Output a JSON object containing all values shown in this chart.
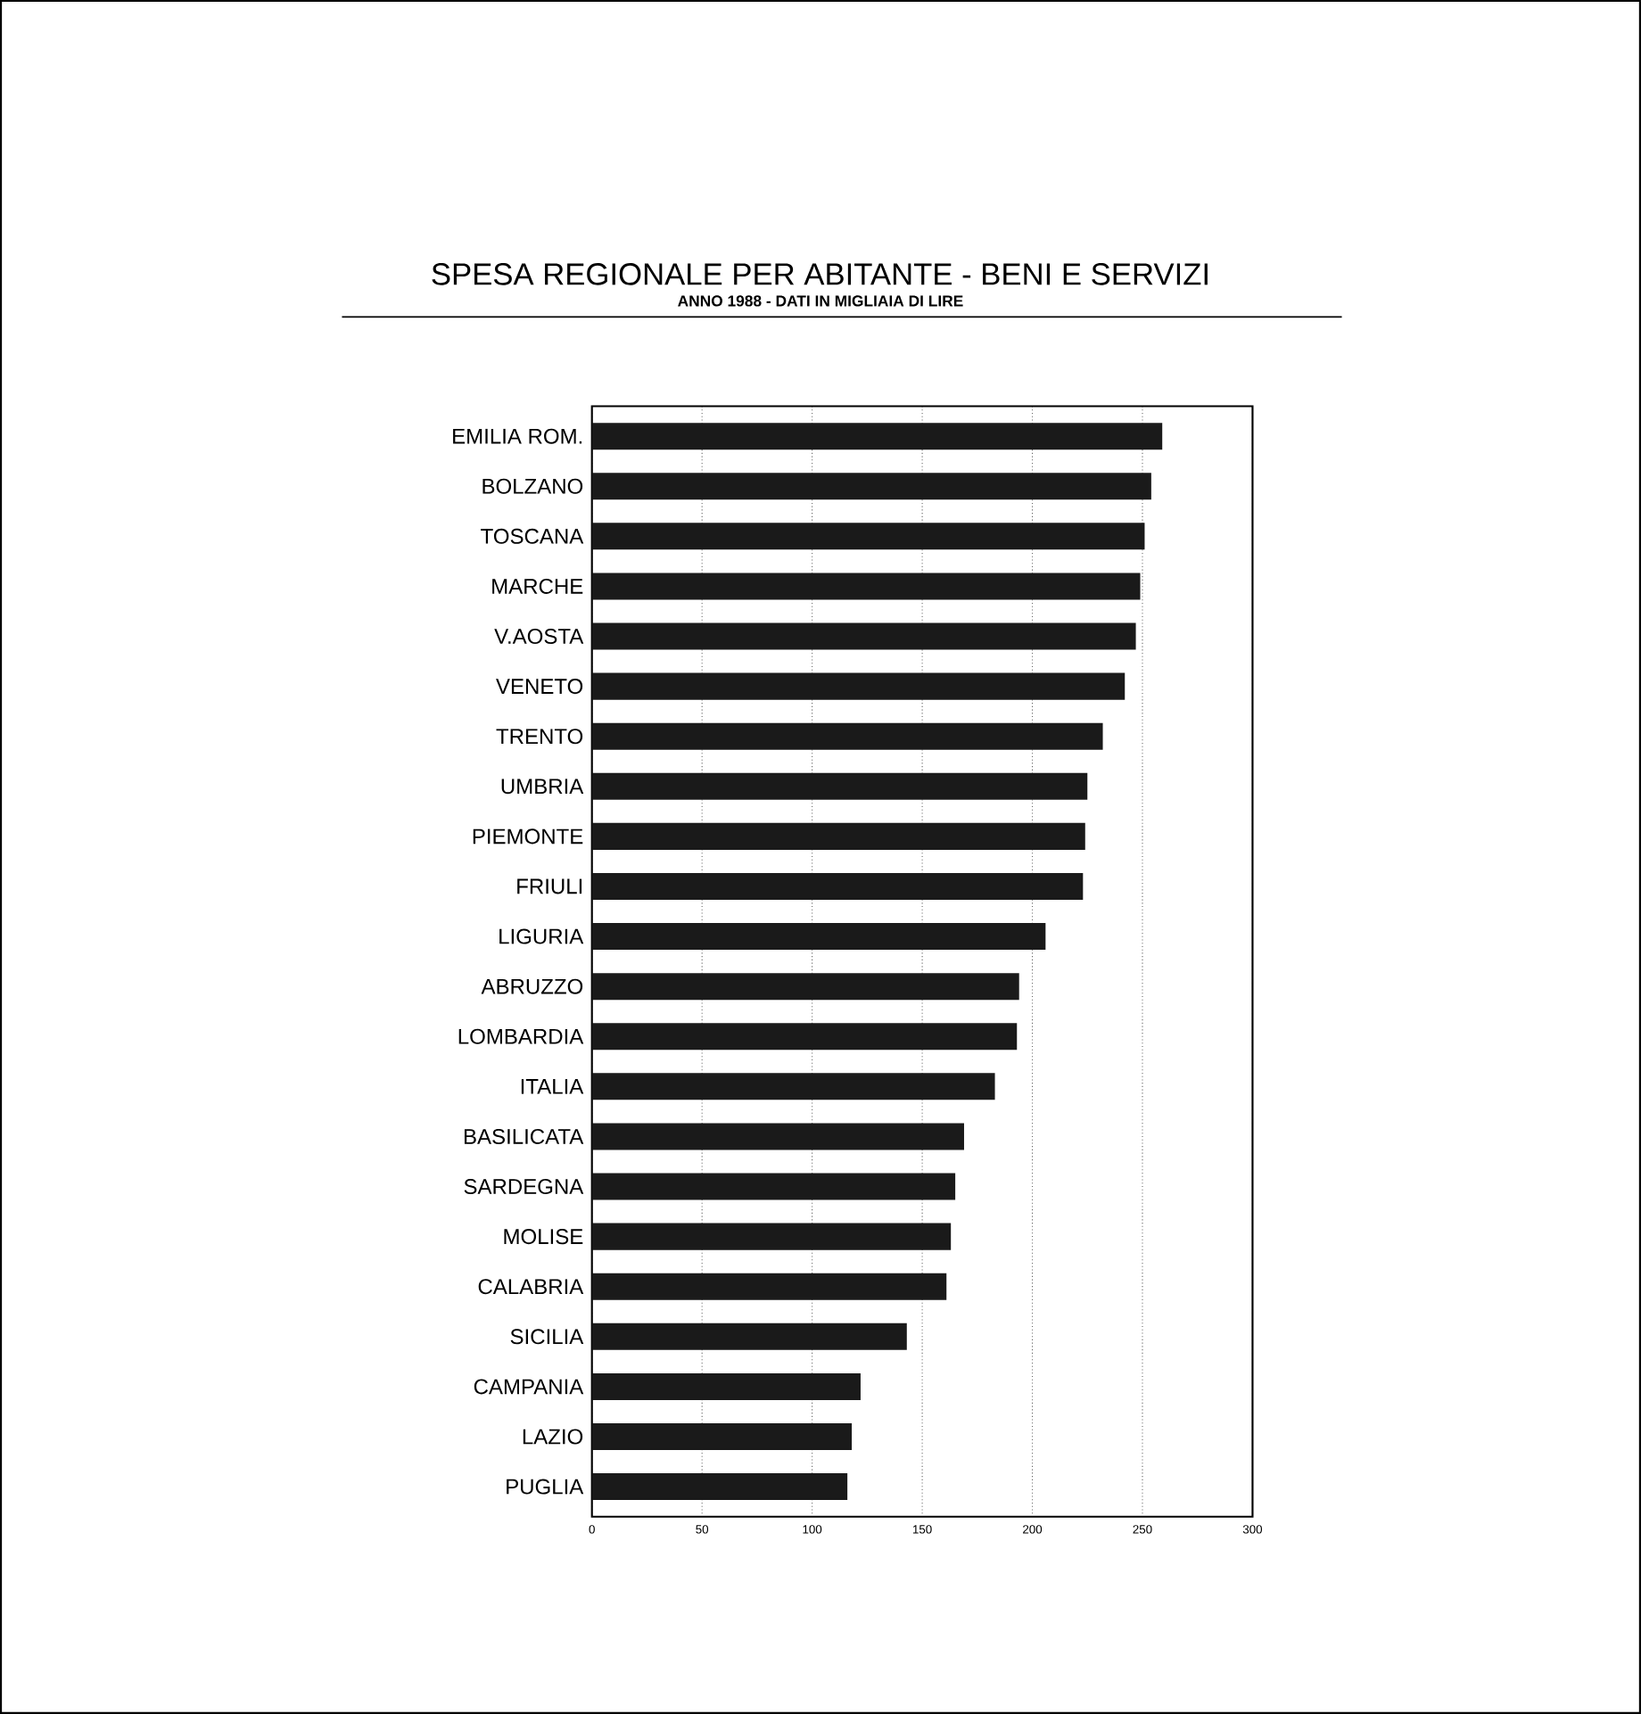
{
  "chart_data": {
    "type": "bar",
    "orientation": "horizontal",
    "title": "SPESA REGIONALE PER ABITANTE - BENI E SERVIZI",
    "subtitle": "ANNO 1988 - DATI IN MIGLIAIA DI LIRE",
    "categories": [
      "EMILIA ROM.",
      "BOLZANO",
      "TOSCANA",
      "MARCHE",
      "V.AOSTA",
      "VENETO",
      "TRENTO",
      "UMBRIA",
      "PIEMONTE",
      "FRIULI",
      "LIGURIA",
      "ABRUZZO",
      "LOMBARDIA",
      "ITALIA",
      "BASILICATA",
      "SARDEGNA",
      "MOLISE",
      "CALABRIA",
      "SICILIA",
      "CAMPANIA",
      "LAZIO",
      "PUGLIA"
    ],
    "values": [
      259,
      254,
      251,
      249,
      247,
      242,
      232,
      225,
      224,
      223,
      206,
      194,
      193,
      183,
      169,
      165,
      163,
      161,
      143,
      122,
      118,
      116
    ],
    "color": "#1a1a1a",
    "xlim": [
      0,
      300
    ],
    "xticks": [
      0,
      50,
      100,
      150,
      200,
      250,
      300
    ],
    "grid": "x"
  }
}
